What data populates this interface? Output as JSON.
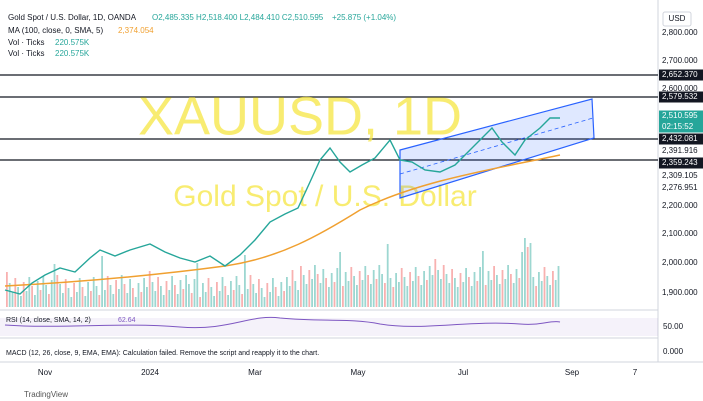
{
  "header": {
    "symbol_line": "Gold Spot / U.S. Dollar, 1D, OANDA",
    "ohlc": "O2,485.335 H2,518.400 L2,484.410 C2,510.595",
    "change": "+25.875 (+1.04%)",
    "ma": "MA (100, close, 0, SMA, 5)",
    "ma_value": "2,374.054",
    "vol": [
      {
        "label": "Vol · Ticks",
        "value": "220.575K"
      },
      {
        "label": "Vol · Ticks",
        "value": "220.575K"
      }
    ]
  },
  "watermark": {
    "symbol": "XAUUSD, 1D",
    "name": "Gold Spot / U.S. Dollar"
  },
  "price_axis": {
    "currency": "USD",
    "labels": [
      "2,800.000",
      "2,700.000",
      "2,652.370",
      "2,600.000",
      "2,579.532",
      "2,510.595",
      "02:15:52",
      "2,432.081",
      "2,391.916",
      "2,359.243",
      "2,309.105",
      "2,276.951",
      "2,200.000",
      "2,100.000",
      "2,000.000",
      "1,900.000"
    ]
  },
  "rsi": {
    "label": "RSI (14, close, SMA, 14, 2)",
    "value": "62.64",
    "axis": "50.00"
  },
  "macd": {
    "label": "MACD (12, 26, close, 9, EMA, EMA): Calculation failed. Remove the script and reapply it to the chart.",
    "axis": "0.000"
  },
  "time_axis": [
    "Nov",
    "2024",
    "Mar",
    "May",
    "Jul",
    "Sep",
    "7"
  ],
  "footer": "TradingView"
}
